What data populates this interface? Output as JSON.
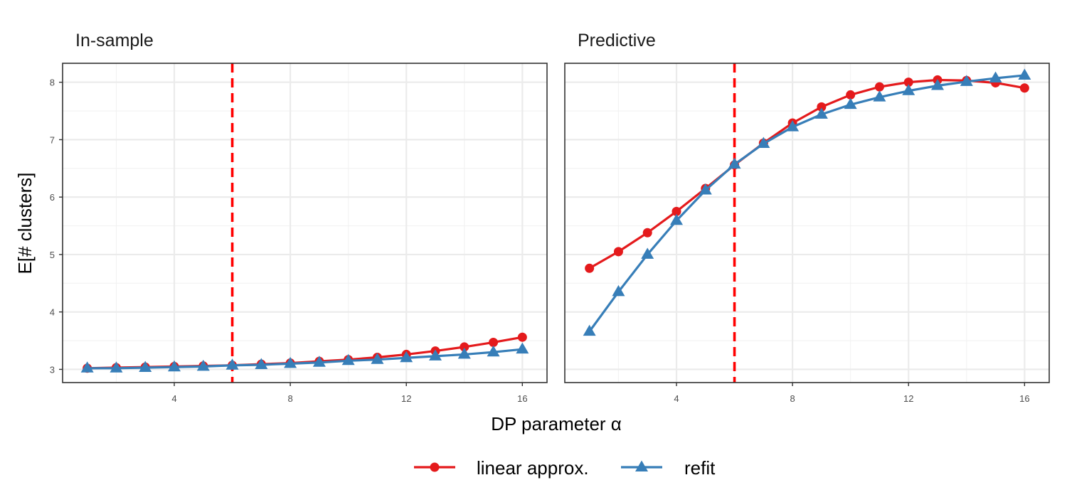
{
  "chart_data": {
    "type": "line",
    "ylabel": "E[# clusters]",
    "xlabel": "DP parameter α",
    "x": [
      1,
      2,
      3,
      4,
      5,
      6,
      7,
      8,
      9,
      10,
      11,
      12,
      13,
      14,
      15,
      16
    ],
    "xlim": [
      0.15,
      16.85
    ],
    "ylim": [
      2.77,
      8.33
    ],
    "x_ticks": [
      4,
      8,
      12,
      16
    ],
    "y_ticks": [
      3,
      4,
      5,
      6,
      7,
      8
    ],
    "grid": true,
    "legend_position": "bottom",
    "reference_line": {
      "x": 6,
      "color": "#ff0000",
      "style": "dashed"
    },
    "colors": {
      "linear": "#e41a1c",
      "refit": "#377eb8"
    },
    "series": [
      {
        "name": "linear approx.",
        "marker": "circle"
      },
      {
        "name": "refit",
        "marker": "triangle"
      }
    ],
    "panels": [
      {
        "title": "In-sample",
        "series": [
          {
            "values": [
              3.02,
              3.03,
              3.04,
              3.05,
              3.06,
              3.07,
              3.09,
              3.11,
              3.14,
              3.17,
              3.21,
              3.26,
              3.32,
              3.39,
              3.47,
              3.56
            ]
          },
          {
            "values": [
              3.02,
              3.02,
              3.03,
              3.04,
              3.05,
              3.07,
              3.08,
              3.1,
              3.12,
              3.15,
              3.17,
              3.2,
              3.23,
              3.26,
              3.3,
              3.35
            ]
          }
        ]
      },
      {
        "title": "Predictive",
        "series": [
          {
            "values": [
              4.76,
              5.05,
              5.38,
              5.75,
              6.15,
              6.56,
              6.94,
              7.29,
              7.57,
              7.78,
              7.92,
              8.0,
              8.04,
              8.03,
              7.99,
              7.9
            ]
          },
          {
            "values": [
              3.66,
              4.35,
              5.0,
              5.59,
              6.12,
              6.57,
              6.93,
              7.22,
              7.44,
              7.61,
              7.74,
              7.85,
              7.94,
              8.01,
              8.07,
              8.12
            ]
          }
        ]
      }
    ]
  }
}
